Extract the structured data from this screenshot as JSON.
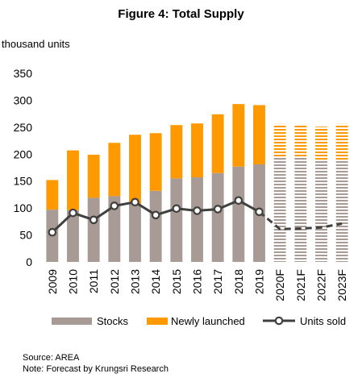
{
  "chart_data": {
    "type": "bar",
    "title": "Figure 4: Total Supply",
    "ylabel": "thousand units",
    "ylim": [
      0,
      350
    ],
    "yticks": [
      0,
      50,
      100,
      150,
      200,
      250,
      300,
      350
    ],
    "grid": false,
    "legend_position": "bottom",
    "categories": [
      "2009",
      "2010",
      "2011",
      "2012",
      "2013",
      "2014",
      "2015",
      "2016",
      "2017",
      "2018",
      "2019",
      "2020F",
      "2021F",
      "2022F",
      "2023F"
    ],
    "forecast_from_index": 11,
    "stacked": true,
    "series": [
      {
        "name": "Stocks",
        "kind": "bar",
        "color": "#a89a95",
        "values": [
          97,
          96,
          119,
          122,
          107,
          132,
          155,
          157,
          165,
          177,
          181,
          193,
          193,
          188,
          188
        ]
      },
      {
        "name": "Newly launched",
        "kind": "bar",
        "color": "#ff9900",
        "values": [
          55,
          111,
          80,
          99,
          129,
          107,
          99,
          100,
          109,
          116,
          110,
          63,
          62,
          63,
          68
        ]
      },
      {
        "name": "Units sold",
        "kind": "line",
        "color": "#404040",
        "values": [
          55,
          91,
          78,
          104,
          111,
          87,
          99,
          95,
          98,
          114,
          93,
          61,
          62,
          64,
          71
        ]
      }
    ]
  },
  "notes": {
    "source": "Source: AREA",
    "note": "Note: Forecast by Krungsri Research"
  }
}
